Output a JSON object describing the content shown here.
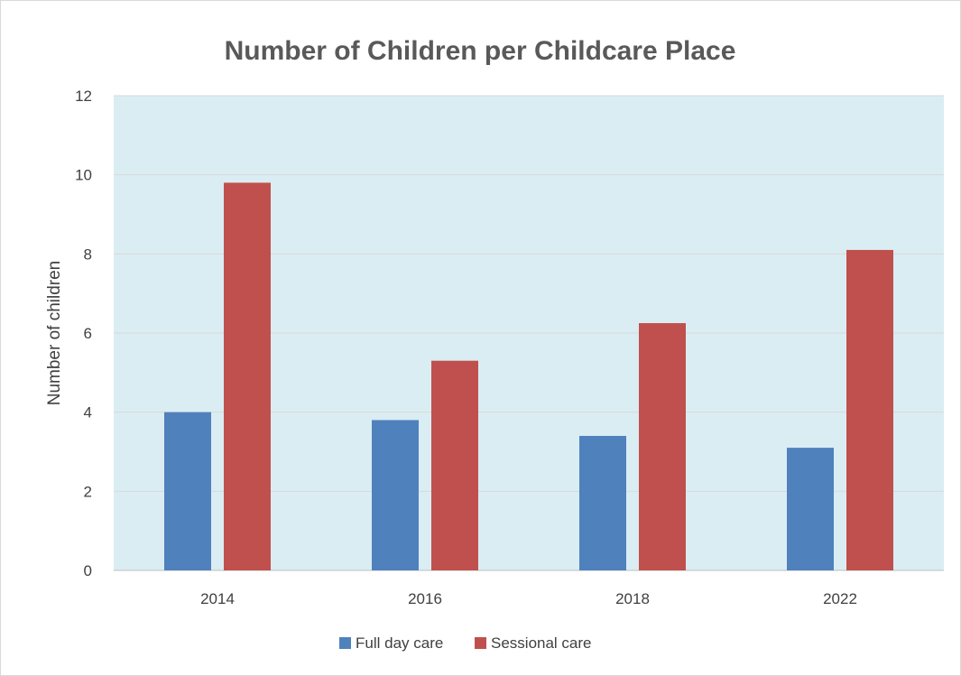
{
  "chart_data": {
    "type": "bar",
    "title": "Number of Children per Childcare Place",
    "xlabel": "",
    "ylabel": "Number of children",
    "categories": [
      "2014",
      "2016",
      "2018",
      "2022"
    ],
    "series": [
      {
        "name": "Full day care",
        "values": [
          4.0,
          3.8,
          3.4,
          3.1
        ]
      },
      {
        "name": "Sessional care",
        "values": [
          9.8,
          5.3,
          6.25,
          8.1
        ]
      }
    ],
    "ylim": [
      0,
      12
    ],
    "yticks": [
      "0",
      "2",
      "4",
      "6",
      "8",
      "10",
      "12"
    ],
    "grid": true,
    "legend_position": "bottom"
  },
  "colors": {
    "plot_background": "#daedf3",
    "gridline": "#d9d9d9",
    "series": [
      "#4f81bd",
      "#c0504d"
    ]
  }
}
